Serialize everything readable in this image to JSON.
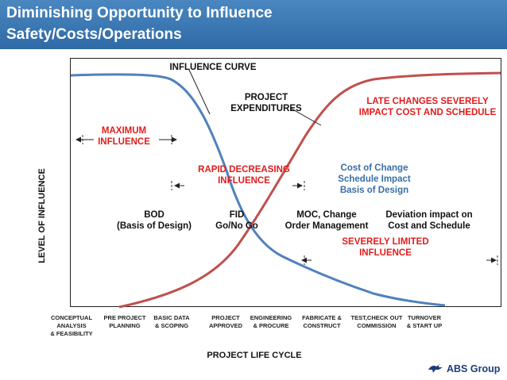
{
  "title": {
    "line1": "Diminishing Opportunity to Influence",
    "line2": "Safety/Costs/Operations"
  },
  "axes": {
    "y_label": "LEVEL OF INFLUENCE",
    "x_label": "PROJECT LIFE CYCLE"
  },
  "curves": {
    "influence_label": "INFLUENCE CURVE",
    "expenditures_line1": "PROJECT",
    "expenditures_line2": "EXPENDITURES",
    "influence_color": "#4f81bd",
    "expenditures_color": "#c0504d"
  },
  "annotations": {
    "max_influence_1": "MAXIMUM",
    "max_influence_2": "INFLUENCE",
    "rapid_1": "RAPID DECREASING",
    "rapid_2": "INFLUENCE",
    "late_1": "LATE CHANGES SEVERELY",
    "late_2": "IMPACT COST AND SCHEDULE",
    "cost_1": "Cost of Change",
    "cost_2": "Schedule Impact",
    "cost_3": "Basis of Design",
    "bod_1": "BOD",
    "bod_2": "(Basis of Design)",
    "fid_1": "FID",
    "fid_2": "Go/No Go",
    "moc_1": "MOC, Change",
    "moc_2": "Order Management",
    "dev_1": "Deviation impact on",
    "dev_2": "Cost and Schedule",
    "sev_1": "SEVERELY LIMITED",
    "sev_2": "INFLUENCE"
  },
  "stages": [
    {
      "l1": "CONCEPTUAL",
      "l2": "ANALYSIS",
      "l3": "& FEASIBILITY"
    },
    {
      "l1": "PRE PROJECT",
      "l2": "PLANNING",
      "l3": ""
    },
    {
      "l1": "BASIC DATA",
      "l2": "& SCOPING",
      "l3": ""
    },
    {
      "l1": "PROJECT",
      "l2": "APPROVED",
      "l3": ""
    },
    {
      "l1": "ENGINEERING",
      "l2": "& PROCURE",
      "l3": ""
    },
    {
      "l1": "FABRICATE &",
      "l2": "CONSTRUCT",
      "l3": ""
    },
    {
      "l1": "TEST,CHECK OUT",
      "l2": "COMMISSION",
      "l3": ""
    },
    {
      "l1": "TURNOVER",
      "l2": "& START UP",
      "l3": ""
    }
  ],
  "logo": {
    "text": "ABS Group",
    "icon": "abs-eagle-icon"
  }
}
